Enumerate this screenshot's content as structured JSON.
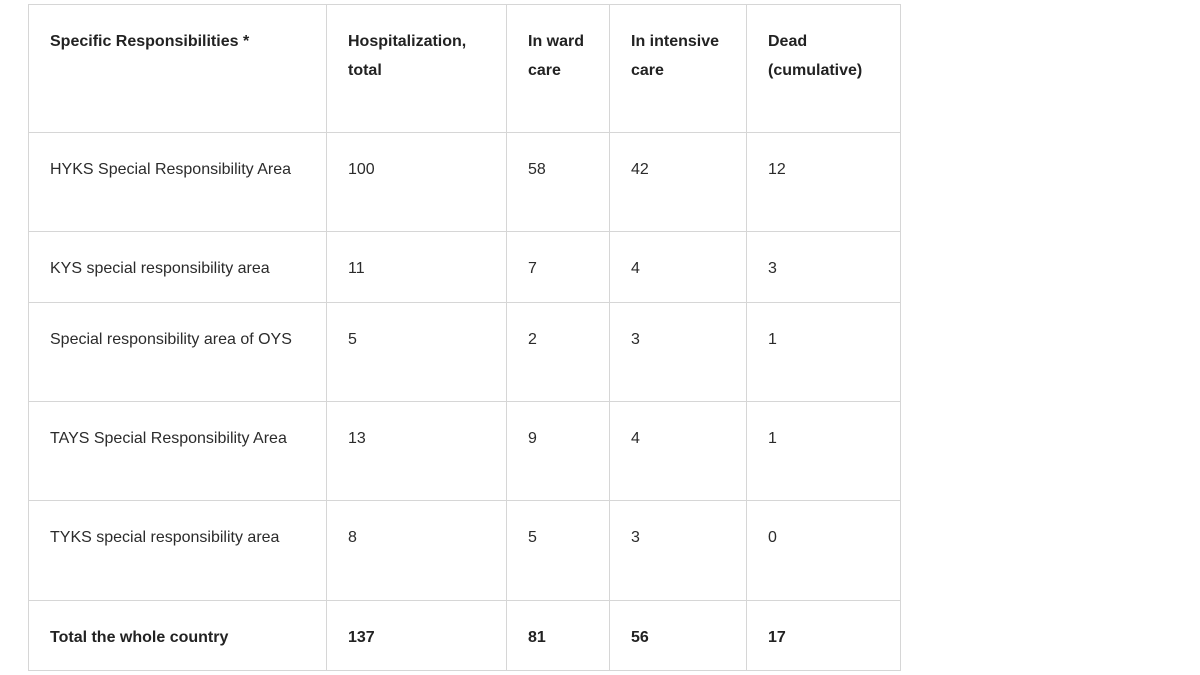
{
  "table": {
    "headers": [
      "Specific Responsibilities *",
      "Hospitalization, total",
      "In ward care",
      "In intensive care",
      "Dead (cumulative)"
    ],
    "rows": [
      [
        "HYKS Special Responsibility Area",
        "100",
        "58",
        "42",
        "12"
      ],
      [
        "KYS special responsibility area",
        "11",
        "7",
        "4",
        "3"
      ],
      [
        "Special responsibility area of OYS",
        "5",
        "2",
        "3",
        "1"
      ],
      [
        "TAYS Special Responsibility Area",
        "13",
        "9",
        "4",
        "1"
      ],
      [
        "TYKS special responsibility area",
        "8",
        "5",
        "3",
        "0"
      ]
    ],
    "total": [
      "Total the whole country",
      "137",
      "81",
      "56",
      "17"
    ]
  }
}
